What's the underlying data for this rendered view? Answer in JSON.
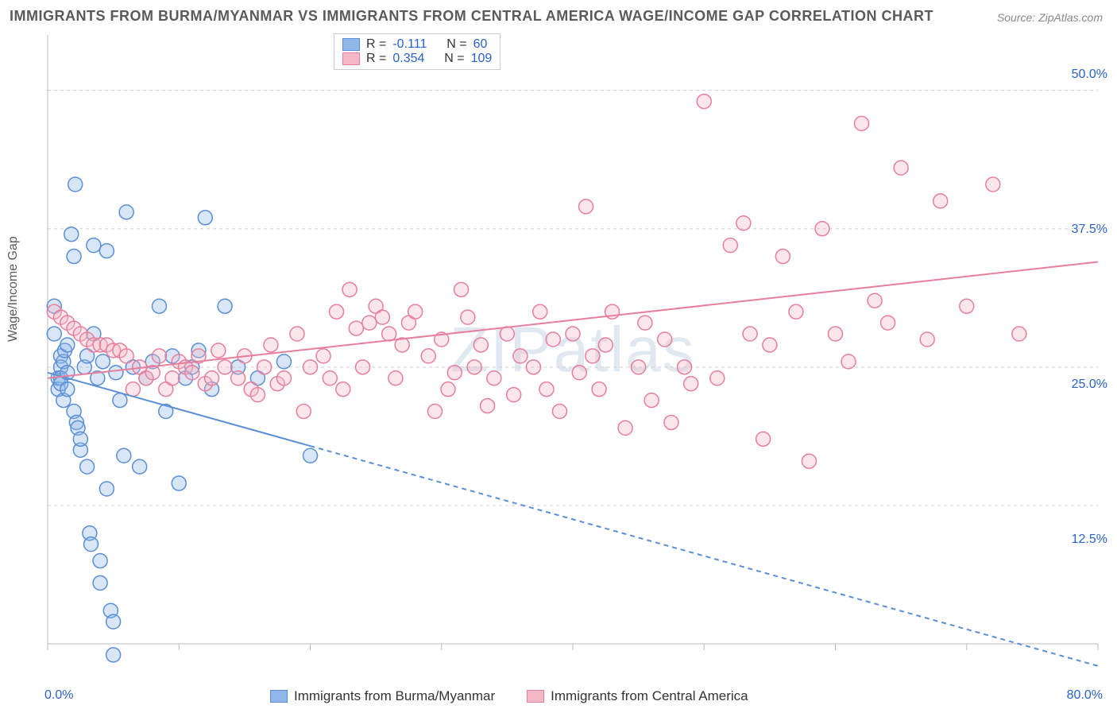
{
  "title": "IMMIGRANTS FROM BURMA/MYANMAR VS IMMIGRANTS FROM CENTRAL AMERICA WAGE/INCOME GAP CORRELATION CHART",
  "source": "Source: ZipAtlas.com",
  "ylabel": "Wage/Income Gap",
  "watermark": "ZIPatlas",
  "chart": {
    "type": "scatter",
    "background_color": "#ffffff",
    "grid_color": "#d0d0d0",
    "grid_dash": "4,4",
    "xlim": [
      0,
      80
    ],
    "ylim": [
      0,
      55
    ],
    "x_ticks": [
      0,
      80
    ],
    "x_tick_labels": [
      "0.0%",
      "80.0%"
    ],
    "y_ticks": [
      12.5,
      25.0,
      37.5,
      50.0
    ],
    "y_tick_labels": [
      "12.5%",
      "25.0%",
      "37.5%",
      "50.0%"
    ],
    "marker_radius": 9,
    "marker_fill_opacity": 0.35,
    "marker_stroke_width": 1.5,
    "series": [
      {
        "name": "Immigrants from Burma/Myanmar",
        "color_fill": "#8fb8e8",
        "color_stroke": "#5a8fd6",
        "r": -0.111,
        "n": 60,
        "trend": {
          "x1": 0,
          "y1": 24.5,
          "x2": 80,
          "y2": -2.0,
          "solid_until_x": 20,
          "stroke_width": 2
        },
        "points": [
          [
            0.5,
            30.5
          ],
          [
            0.5,
            28.0
          ],
          [
            0.8,
            24.0
          ],
          [
            0.8,
            23.0
          ],
          [
            1.0,
            26.0
          ],
          [
            1.0,
            25.0
          ],
          [
            1.0,
            24.0
          ],
          [
            1.0,
            23.5
          ],
          [
            1.2,
            22.0
          ],
          [
            1.2,
            25.5
          ],
          [
            1.3,
            26.5
          ],
          [
            1.5,
            24.5
          ],
          [
            1.5,
            27.0
          ],
          [
            1.5,
            23.0
          ],
          [
            1.8,
            37.0
          ],
          [
            2.0,
            35.0
          ],
          [
            2.0,
            21.0
          ],
          [
            2.1,
            41.5
          ],
          [
            2.2,
            20.0
          ],
          [
            2.3,
            19.5
          ],
          [
            2.5,
            17.5
          ],
          [
            2.5,
            18.5
          ],
          [
            2.8,
            25.0
          ],
          [
            3.0,
            26.0
          ],
          [
            3.0,
            16.0
          ],
          [
            3.2,
            10.0
          ],
          [
            3.3,
            9.0
          ],
          [
            3.5,
            36.0
          ],
          [
            3.5,
            28.0
          ],
          [
            3.8,
            24.0
          ],
          [
            4.0,
            7.5
          ],
          [
            4.0,
            5.5
          ],
          [
            4.2,
            25.5
          ],
          [
            4.5,
            35.5
          ],
          [
            4.5,
            14.0
          ],
          [
            4.8,
            3.0
          ],
          [
            5.0,
            2.0
          ],
          [
            5.0,
            -1.0
          ],
          [
            5.2,
            24.5
          ],
          [
            5.5,
            22.0
          ],
          [
            5.8,
            17.0
          ],
          [
            6.0,
            39.0
          ],
          [
            6.5,
            25.0
          ],
          [
            7.0,
            16.0
          ],
          [
            7.5,
            24.0
          ],
          [
            8.0,
            25.5
          ],
          [
            8.5,
            30.5
          ],
          [
            9.0,
            21.0
          ],
          [
            9.5,
            26.0
          ],
          [
            10.0,
            14.5
          ],
          [
            10.5,
            24.0
          ],
          [
            11.0,
            25.0
          ],
          [
            11.5,
            26.5
          ],
          [
            12.0,
            38.5
          ],
          [
            12.5,
            23.0
          ],
          [
            13.5,
            30.5
          ],
          [
            14.5,
            25.0
          ],
          [
            16.0,
            24.0
          ],
          [
            18.0,
            25.5
          ],
          [
            20.0,
            17.0
          ]
        ]
      },
      {
        "name": "Immigrants from Central America",
        "color_fill": "#f4b8c6",
        "color_stroke": "#e77f9c",
        "r": 0.354,
        "n": 109,
        "trend": {
          "x1": 0,
          "y1": 24.0,
          "x2": 80,
          "y2": 34.5,
          "solid_until_x": 80,
          "stroke_width": 2
        },
        "points": [
          [
            0.5,
            30.0
          ],
          [
            1.0,
            29.5
          ],
          [
            1.5,
            29.0
          ],
          [
            2.0,
            28.5
          ],
          [
            2.5,
            28.0
          ],
          [
            3.0,
            27.5
          ],
          [
            3.5,
            27.0
          ],
          [
            4.0,
            27.0
          ],
          [
            4.5,
            27.0
          ],
          [
            5.0,
            26.5
          ],
          [
            5.5,
            26.5
          ],
          [
            6.0,
            26.0
          ],
          [
            6.5,
            23.0
          ],
          [
            7.0,
            25.0
          ],
          [
            7.5,
            24.0
          ],
          [
            8.0,
            24.5
          ],
          [
            8.5,
            26.0
          ],
          [
            9.0,
            23.0
          ],
          [
            9.5,
            24.0
          ],
          [
            10.0,
            25.5
          ],
          [
            10.5,
            25.0
          ],
          [
            11.0,
            24.5
          ],
          [
            11.5,
            26.0
          ],
          [
            12.0,
            23.5
          ],
          [
            12.5,
            24.0
          ],
          [
            13.0,
            26.5
          ],
          [
            13.5,
            25.0
          ],
          [
            14.5,
            24.0
          ],
          [
            15.0,
            26.0
          ],
          [
            15.5,
            23.0
          ],
          [
            16.0,
            22.5
          ],
          [
            16.5,
            25.0
          ],
          [
            17.0,
            27.0
          ],
          [
            17.5,
            23.5
          ],
          [
            18.0,
            24.0
          ],
          [
            19.0,
            28.0
          ],
          [
            19.5,
            21.0
          ],
          [
            20.0,
            25.0
          ],
          [
            21.0,
            26.0
          ],
          [
            21.5,
            24.0
          ],
          [
            22.0,
            30.0
          ],
          [
            22.5,
            23.0
          ],
          [
            23.0,
            32.0
          ],
          [
            23.5,
            28.5
          ],
          [
            24.0,
            25.0
          ],
          [
            24.5,
            29.0
          ],
          [
            25.0,
            30.5
          ],
          [
            25.5,
            29.5
          ],
          [
            26.0,
            28.0
          ],
          [
            26.5,
            24.0
          ],
          [
            27.0,
            27.0
          ],
          [
            27.5,
            29.0
          ],
          [
            28.0,
            30.0
          ],
          [
            29.0,
            26.0
          ],
          [
            29.5,
            21.0
          ],
          [
            30.0,
            27.5
          ],
          [
            30.5,
            23.0
          ],
          [
            31.0,
            24.5
          ],
          [
            31.5,
            32.0
          ],
          [
            32.0,
            29.5
          ],
          [
            32.5,
            25.0
          ],
          [
            33.0,
            27.0
          ],
          [
            33.5,
            21.5
          ],
          [
            34.0,
            24.0
          ],
          [
            35.0,
            28.0
          ],
          [
            35.5,
            22.5
          ],
          [
            36.0,
            26.0
          ],
          [
            37.0,
            25.0
          ],
          [
            37.5,
            30.0
          ],
          [
            38.0,
            23.0
          ],
          [
            38.5,
            27.5
          ],
          [
            39.0,
            21.0
          ],
          [
            40.0,
            28.0
          ],
          [
            40.5,
            24.5
          ],
          [
            41.0,
            39.5
          ],
          [
            41.5,
            26.0
          ],
          [
            42.0,
            23.0
          ],
          [
            42.5,
            27.0
          ],
          [
            43.0,
            30.0
          ],
          [
            44.0,
            19.5
          ],
          [
            45.0,
            25.0
          ],
          [
            45.5,
            29.0
          ],
          [
            46.0,
            22.0
          ],
          [
            47.0,
            27.5
          ],
          [
            47.5,
            20.0
          ],
          [
            48.5,
            25.0
          ],
          [
            49.0,
            23.5
          ],
          [
            50.0,
            49.0
          ],
          [
            51.0,
            24.0
          ],
          [
            52.0,
            36.0
          ],
          [
            53.0,
            38.0
          ],
          [
            53.5,
            28.0
          ],
          [
            54.5,
            18.5
          ],
          [
            55.0,
            27.0
          ],
          [
            56.0,
            35.0
          ],
          [
            57.0,
            30.0
          ],
          [
            58.0,
            16.5
          ],
          [
            59.0,
            37.5
          ],
          [
            60.0,
            28.0
          ],
          [
            61.0,
            25.5
          ],
          [
            62.0,
            47.0
          ],
          [
            63.0,
            31.0
          ],
          [
            64.0,
            29.0
          ],
          [
            65.0,
            43.0
          ],
          [
            67.0,
            27.5
          ],
          [
            68.0,
            40.0
          ],
          [
            70.0,
            30.5
          ],
          [
            72.0,
            41.5
          ],
          [
            74.0,
            28.0
          ]
        ]
      }
    ]
  },
  "legend_top": [
    {
      "swatch_fill": "#8fb8e8",
      "swatch_stroke": "#5a8fd6",
      "r_label": "R =",
      "r_val": "-0.111",
      "n_label": "N =",
      "n_val": "60"
    },
    {
      "swatch_fill": "#f4b8c6",
      "swatch_stroke": "#e77f9c",
      "r_label": "R =",
      "r_val": "0.354",
      "n_label": "N =",
      "n_val": "109"
    }
  ],
  "legend_bottom": [
    {
      "swatch_fill": "#8fb8e8",
      "swatch_stroke": "#5a8fd6",
      "label": "Immigrants from Burma/Myanmar"
    },
    {
      "swatch_fill": "#f4b8c6",
      "swatch_stroke": "#e77f9c",
      "label": "Immigrants from Central America"
    }
  ]
}
